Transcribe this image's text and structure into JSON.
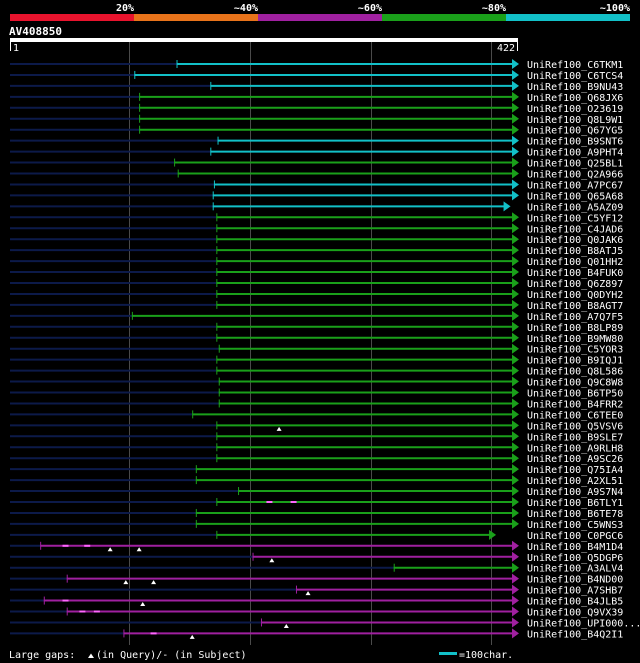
{
  "chart_data": {
    "type": "alignment-overview",
    "title": "AV408850",
    "query_start": 1,
    "query_end": 422,
    "query_start_label": "1",
    "query_end_label": "422",
    "identity_scale": {
      "ticks": [
        "20%",
        "~40%",
        "~60%",
        "~80%",
        "~100%"
      ],
      "colors": [
        "#e8132d",
        "#e8731a",
        "#a020a0",
        "#1aa01a",
        "#12c0c8"
      ]
    },
    "color_map": {
      "cyan": "#12c0c8",
      "green": "#1aa01a",
      "magenta": "#a020a0"
    },
    "legend": {
      "gaps_label_a": "Large gaps: ",
      "gaps_label_b": "(in Query)/- (in Subject)",
      "scale_label": "=100char."
    },
    "hits": [
      {
        "name": "UniRef100_C6TKM1",
        "start": 139,
        "end": 422,
        "color": "cyan",
        "marks": []
      },
      {
        "name": "UniRef100_C6TCS4",
        "start": 104,
        "end": 422,
        "color": "cyan",
        "marks": []
      },
      {
        "name": "UniRef100_B9NU43",
        "start": 167,
        "end": 422,
        "color": "cyan",
        "marks": []
      },
      {
        "name": "UniRef100_Q68JX6",
        "start": 108,
        "end": 422,
        "color": "green",
        "marks": []
      },
      {
        "name": "UniRef100_O23619",
        "start": 108,
        "end": 422,
        "color": "green",
        "marks": []
      },
      {
        "name": "UniRef100_Q8L9W1",
        "start": 108,
        "end": 422,
        "color": "green",
        "marks": []
      },
      {
        "name": "UniRef100_Q67YG5",
        "start": 108,
        "end": 422,
        "color": "green",
        "marks": []
      },
      {
        "name": "UniRef100_B9SNT6",
        "start": 173,
        "end": 422,
        "color": "cyan",
        "marks": []
      },
      {
        "name": "UniRef100_A9PHT4",
        "start": 167,
        "end": 422,
        "color": "cyan",
        "marks": []
      },
      {
        "name": "UniRef100_Q25BL1",
        "start": 137,
        "end": 422,
        "color": "green",
        "marks": []
      },
      {
        "name": "UniRef100_Q2A966",
        "start": 140,
        "end": 422,
        "color": "green",
        "marks": []
      },
      {
        "name": "UniRef100_A7PC67",
        "start": 170,
        "end": 422,
        "color": "cyan",
        "marks": []
      },
      {
        "name": "UniRef100_Q65A68",
        "start": 169,
        "end": 422,
        "color": "cyan",
        "marks": []
      },
      {
        "name": "UniRef100_A5AZ09",
        "start": 169,
        "end": 415,
        "color": "cyan",
        "marks": []
      },
      {
        "name": "UniRef100_C5YF12",
        "start": 172,
        "end": 422,
        "color": "green",
        "marks": []
      },
      {
        "name": "UniRef100_C4JAD6",
        "start": 172,
        "end": 422,
        "color": "green",
        "marks": []
      },
      {
        "name": "UniRef100_Q0JAK6",
        "start": 172,
        "end": 422,
        "color": "green",
        "marks": []
      },
      {
        "name": "UniRef100_B8ATJ5",
        "start": 172,
        "end": 422,
        "color": "green",
        "marks": []
      },
      {
        "name": "UniRef100_Q01HH2",
        "start": 172,
        "end": 422,
        "color": "green",
        "marks": []
      },
      {
        "name": "UniRef100_B4FUK0",
        "start": 172,
        "end": 422,
        "color": "green",
        "marks": []
      },
      {
        "name": "UniRef100_Q6Z897",
        "start": 172,
        "end": 422,
        "color": "green",
        "marks": []
      },
      {
        "name": "UniRef100_Q0DYH2",
        "start": 172,
        "end": 422,
        "color": "green",
        "marks": []
      },
      {
        "name": "UniRef100_B8AGT7",
        "start": 172,
        "end": 422,
        "color": "green",
        "marks": []
      },
      {
        "name": "UniRef100_A7Q7F5",
        "start": 102,
        "end": 422,
        "color": "green",
        "marks": []
      },
      {
        "name": "UniRef100_B8LP89",
        "start": 172,
        "end": 422,
        "color": "green",
        "marks": []
      },
      {
        "name": "UniRef100_B9MW80",
        "start": 172,
        "end": 422,
        "color": "green",
        "marks": []
      },
      {
        "name": "UniRef100_C5YOR3",
        "start": 174,
        "end": 422,
        "color": "green",
        "marks": []
      },
      {
        "name": "UniRef100_B9IQJ1",
        "start": 172,
        "end": 422,
        "color": "green",
        "marks": []
      },
      {
        "name": "UniRef100_Q8L586",
        "start": 172,
        "end": 422,
        "color": "green",
        "marks": []
      },
      {
        "name": "UniRef100_Q9C8W8",
        "start": 174,
        "end": 422,
        "color": "green",
        "marks": []
      },
      {
        "name": "UniRef100_B6TP50",
        "start": 174,
        "end": 422,
        "color": "green",
        "marks": []
      },
      {
        "name": "UniRef100_B4FRR2",
        "start": 174,
        "end": 422,
        "color": "green",
        "marks": []
      },
      {
        "name": "UniRef100_C6TEE0",
        "start": 152,
        "end": 422,
        "color": "green",
        "marks": []
      },
      {
        "name": "UniRef100_Q5VSV6",
        "start": 172,
        "end": 422,
        "color": "green",
        "marks": [
          {
            "pos": 224,
            "type": "query"
          }
        ]
      },
      {
        "name": "UniRef100_B9SLE7",
        "start": 172,
        "end": 422,
        "color": "green",
        "marks": []
      },
      {
        "name": "UniRef100_A9RLH8",
        "start": 172,
        "end": 422,
        "color": "green",
        "marks": []
      },
      {
        "name": "UniRef100_A9SC26",
        "start": 172,
        "end": 422,
        "color": "green",
        "marks": []
      },
      {
        "name": "UniRef100_Q75IA4",
        "start": 155,
        "end": 422,
        "color": "green",
        "marks": []
      },
      {
        "name": "UniRef100_A2XL51",
        "start": 155,
        "end": 422,
        "color": "green",
        "marks": []
      },
      {
        "name": "UniRef100_A9S7N4",
        "start": 190,
        "end": 422,
        "color": "green",
        "marks": []
      },
      {
        "name": "UniRef100_B6TLY1",
        "start": 172,
        "end": 422,
        "color": "green",
        "marks": [
          {
            "pos": 216,
            "type": "subject"
          },
          {
            "pos": 236,
            "type": "subject"
          }
        ]
      },
      {
        "name": "UniRef100_B6TE78",
        "start": 155,
        "end": 422,
        "color": "green",
        "marks": []
      },
      {
        "name": "UniRef100_C5WNS3",
        "start": 155,
        "end": 422,
        "color": "green",
        "marks": []
      },
      {
        "name": "UniRef100_C0PGC6",
        "start": 172,
        "end": 403,
        "color": "green",
        "marks": []
      },
      {
        "name": "UniRef100_B4M1D4",
        "start": 26,
        "end": 422,
        "color": "magenta",
        "marks": [
          {
            "pos": 47,
            "type": "subject"
          },
          {
            "pos": 65,
            "type": "subject"
          },
          {
            "pos": 84,
            "type": "query"
          },
          {
            "pos": 108,
            "type": "query"
          }
        ]
      },
      {
        "name": "UniRef100_Q5DGP6",
        "start": 202,
        "end": 422,
        "color": "magenta",
        "marks": [
          {
            "pos": 218,
            "type": "query"
          }
        ]
      },
      {
        "name": "UniRef100_A3ALV4",
        "start": 319,
        "end": 422,
        "color": "green",
        "marks": []
      },
      {
        "name": "UniRef100_B4ND00",
        "start": 48,
        "end": 422,
        "color": "magenta",
        "marks": [
          {
            "pos": 97,
            "type": "query"
          },
          {
            "pos": 120,
            "type": "query"
          }
        ]
      },
      {
        "name": "UniRef100_A7SHB7",
        "start": 238,
        "end": 422,
        "color": "magenta",
        "marks": [
          {
            "pos": 248,
            "type": "query"
          }
        ]
      },
      {
        "name": "UniRef100_B4JLB5",
        "start": 29,
        "end": 422,
        "color": "magenta",
        "marks": [
          {
            "pos": 47,
            "type": "subject"
          },
          {
            "pos": 111,
            "type": "query"
          }
        ]
      },
      {
        "name": "UniRef100_Q9VX39",
        "start": 48,
        "end": 422,
        "color": "magenta",
        "marks": [
          {
            "pos": 61,
            "type": "subject"
          },
          {
            "pos": 73,
            "type": "subject"
          }
        ]
      },
      {
        "name": "UniRef100_UPI000...",
        "start": 209,
        "end": 422,
        "color": "magenta",
        "marks": [
          {
            "pos": 230,
            "type": "query"
          }
        ]
      },
      {
        "name": "UniRef100_B4Q2I1",
        "start": 95,
        "end": 422,
        "color": "magenta",
        "marks": [
          {
            "pos": 120,
            "type": "subject"
          },
          {
            "pos": 152,
            "type": "query"
          }
        ]
      }
    ]
  }
}
